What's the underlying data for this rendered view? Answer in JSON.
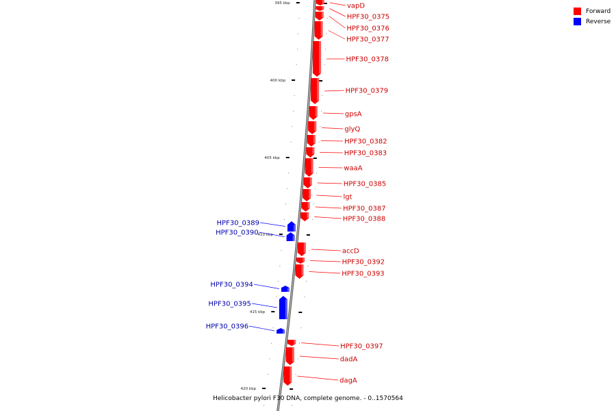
{
  "caption": "Helicobacter pylori F30 DNA, complete genome. - 0..1570564",
  "legend": [
    {
      "label": "Forward",
      "color": "#ff0000"
    },
    {
      "label": "Reverse",
      "color": "#0000ff"
    }
  ],
  "colors": {
    "forward": "#ff0000",
    "reverse": "#0000ff",
    "backbone": "#888888"
  },
  "ruler_labels": [
    "395 kbp",
    "400 kbp",
    "405 kbp",
    "410 kbp",
    "415 kbp",
    "420 kbp"
  ],
  "genes": [
    {
      "name": "vapD",
      "strand": "forward"
    },
    {
      "name": "HPF30_0375",
      "strand": "forward"
    },
    {
      "name": "HPF30_0376",
      "strand": "forward"
    },
    {
      "name": "HPF30_0377",
      "strand": "forward"
    },
    {
      "name": "HPF30_0378",
      "strand": "forward"
    },
    {
      "name": "HPF30_0379",
      "strand": "forward"
    },
    {
      "name": "gpsA",
      "strand": "forward"
    },
    {
      "name": "glyQ",
      "strand": "forward"
    },
    {
      "name": "HPF30_0382",
      "strand": "forward"
    },
    {
      "name": "HPF30_0383",
      "strand": "forward"
    },
    {
      "name": "waaA",
      "strand": "forward"
    },
    {
      "name": "HPF30_0385",
      "strand": "forward"
    },
    {
      "name": "lgt",
      "strand": "forward"
    },
    {
      "name": "HPF30_0387",
      "strand": "forward"
    },
    {
      "name": "HPF30_0388",
      "strand": "forward"
    },
    {
      "name": "HPF30_0389",
      "strand": "reverse"
    },
    {
      "name": "HPF30_0390",
      "strand": "reverse"
    },
    {
      "name": "accD",
      "strand": "forward"
    },
    {
      "name": "HPF30_0392",
      "strand": "forward"
    },
    {
      "name": "HPF30_0393",
      "strand": "forward"
    },
    {
      "name": "HPF30_0394",
      "strand": "reverse"
    },
    {
      "name": "HPF30_0395",
      "strand": "reverse"
    },
    {
      "name": "HPF30_0396",
      "strand": "reverse"
    },
    {
      "name": "HPF30_0397",
      "strand": "forward"
    },
    {
      "name": "dadA",
      "strand": "forward"
    },
    {
      "name": "dagA",
      "strand": "forward"
    }
  ]
}
